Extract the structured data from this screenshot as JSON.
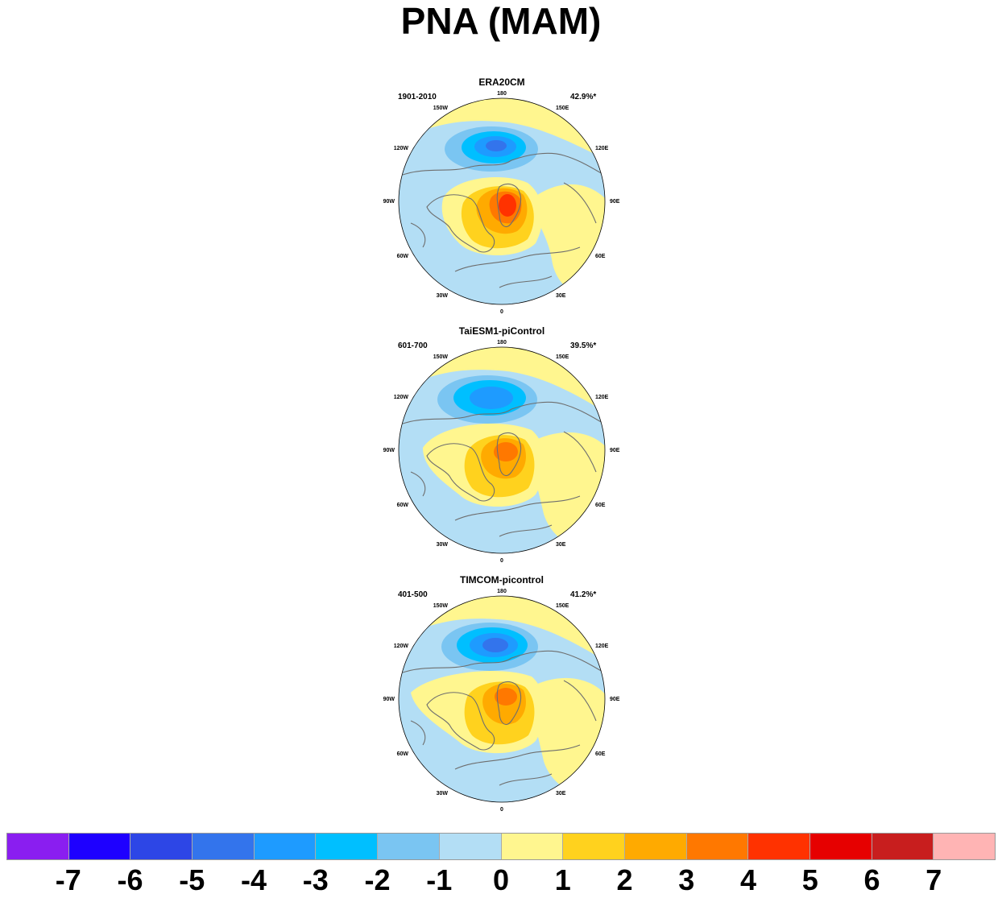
{
  "title": "PNA (MAM)",
  "colors": {
    "ocean_fill": "#b3def5",
    "coast": "#6e6e6e",
    "neg1": "#7ac5f2",
    "neg2": "#00bfff",
    "neg3": "#1e9bff",
    "neg4": "#3374ec",
    "pos1": "#fff68f",
    "pos2": "#ffd21e",
    "pos3": "#ffaa00",
    "pos4": "#ff7800",
    "pos5": "#ff3200"
  },
  "lon_labels": {
    "top": "180",
    "bottom": "0",
    "left": "90W",
    "right": "90E",
    "upper_left": "150W",
    "upper_right": "150E",
    "mid_upper_left": "120W",
    "mid_upper_right": "120E",
    "mid_lower_left": "60W",
    "mid_lower_right": "60E",
    "lower_left": "30W",
    "lower_right": "30E"
  },
  "panels": [
    {
      "name": "ERA20CM",
      "period": "1901-2010",
      "variance": "42.9%*"
    },
    {
      "name": "TaiESM1-piControl",
      "period": "601-700",
      "variance": "39.5%*"
    },
    {
      "name": "TIMCOM-picontrol",
      "period": "401-500",
      "variance": "41.2%*"
    }
  ],
  "colorbar": {
    "colors": [
      "#8a1ef0",
      "#1e00ff",
      "#2d46e6",
      "#3374ec",
      "#1e9bff",
      "#00bfff",
      "#7ac5f2",
      "#b3def5",
      "#fff68f",
      "#ffd21e",
      "#ffaa00",
      "#ff7800",
      "#ff3200",
      "#e60000",
      "#c81e1e",
      "#ffb4b4"
    ],
    "labels": [
      "-7",
      "-6",
      "-5",
      "-4",
      "-3",
      "-2",
      "-1",
      "0",
      "1",
      "2",
      "3",
      "4",
      "5",
      "6",
      "7"
    ]
  }
}
